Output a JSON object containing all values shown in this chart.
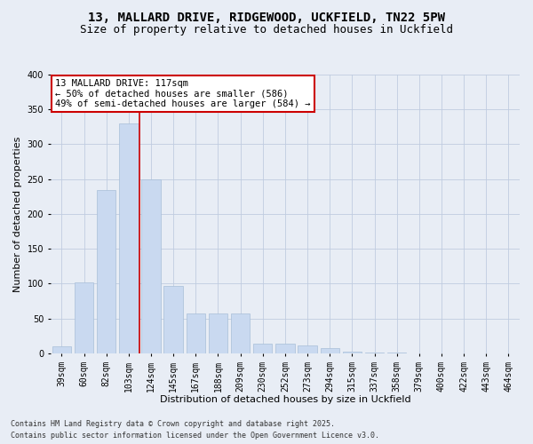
{
  "title_line1": "13, MALLARD DRIVE, RIDGEWOOD, UCKFIELD, TN22 5PW",
  "title_line2": "Size of property relative to detached houses in Uckfield",
  "xlabel": "Distribution of detached houses by size in Uckfield",
  "ylabel": "Number of detached properties",
  "categories": [
    "39sqm",
    "60sqm",
    "82sqm",
    "103sqm",
    "124sqm",
    "145sqm",
    "167sqm",
    "188sqm",
    "209sqm",
    "230sqm",
    "252sqm",
    "273sqm",
    "294sqm",
    "315sqm",
    "337sqm",
    "358sqm",
    "379sqm",
    "400sqm",
    "422sqm",
    "443sqm",
    "464sqm"
  ],
  "values": [
    10,
    102,
    235,
    330,
    250,
    97,
    57,
    57,
    57,
    14,
    14,
    12,
    7,
    3,
    1,
    1,
    0,
    0,
    0,
    0,
    0
  ],
  "bar_color": "#c9d9f0",
  "bar_edge_color": "#a8bfd8",
  "vline_color": "#cc0000",
  "vline_x_index": 3,
  "annotation_text": "13 MALLARD DRIVE: 117sqm\n← 50% of detached houses are smaller (586)\n49% of semi-detached houses are larger (584) →",
  "annotation_box_color": "white",
  "annotation_box_edge_color": "#cc0000",
  "ylim": [
    0,
    400
  ],
  "yticks": [
    0,
    50,
    100,
    150,
    200,
    250,
    300,
    350,
    400
  ],
  "grid_color": "#c0cce0",
  "bg_color": "#e8edf5",
  "footer_line1": "Contains HM Land Registry data © Crown copyright and database right 2025.",
  "footer_line2": "Contains public sector information licensed under the Open Government Licence v3.0.",
  "title_fontsize": 10,
  "subtitle_fontsize": 9,
  "axis_label_fontsize": 8,
  "tick_fontsize": 7,
  "annotation_fontsize": 7.5,
  "footer_fontsize": 6
}
